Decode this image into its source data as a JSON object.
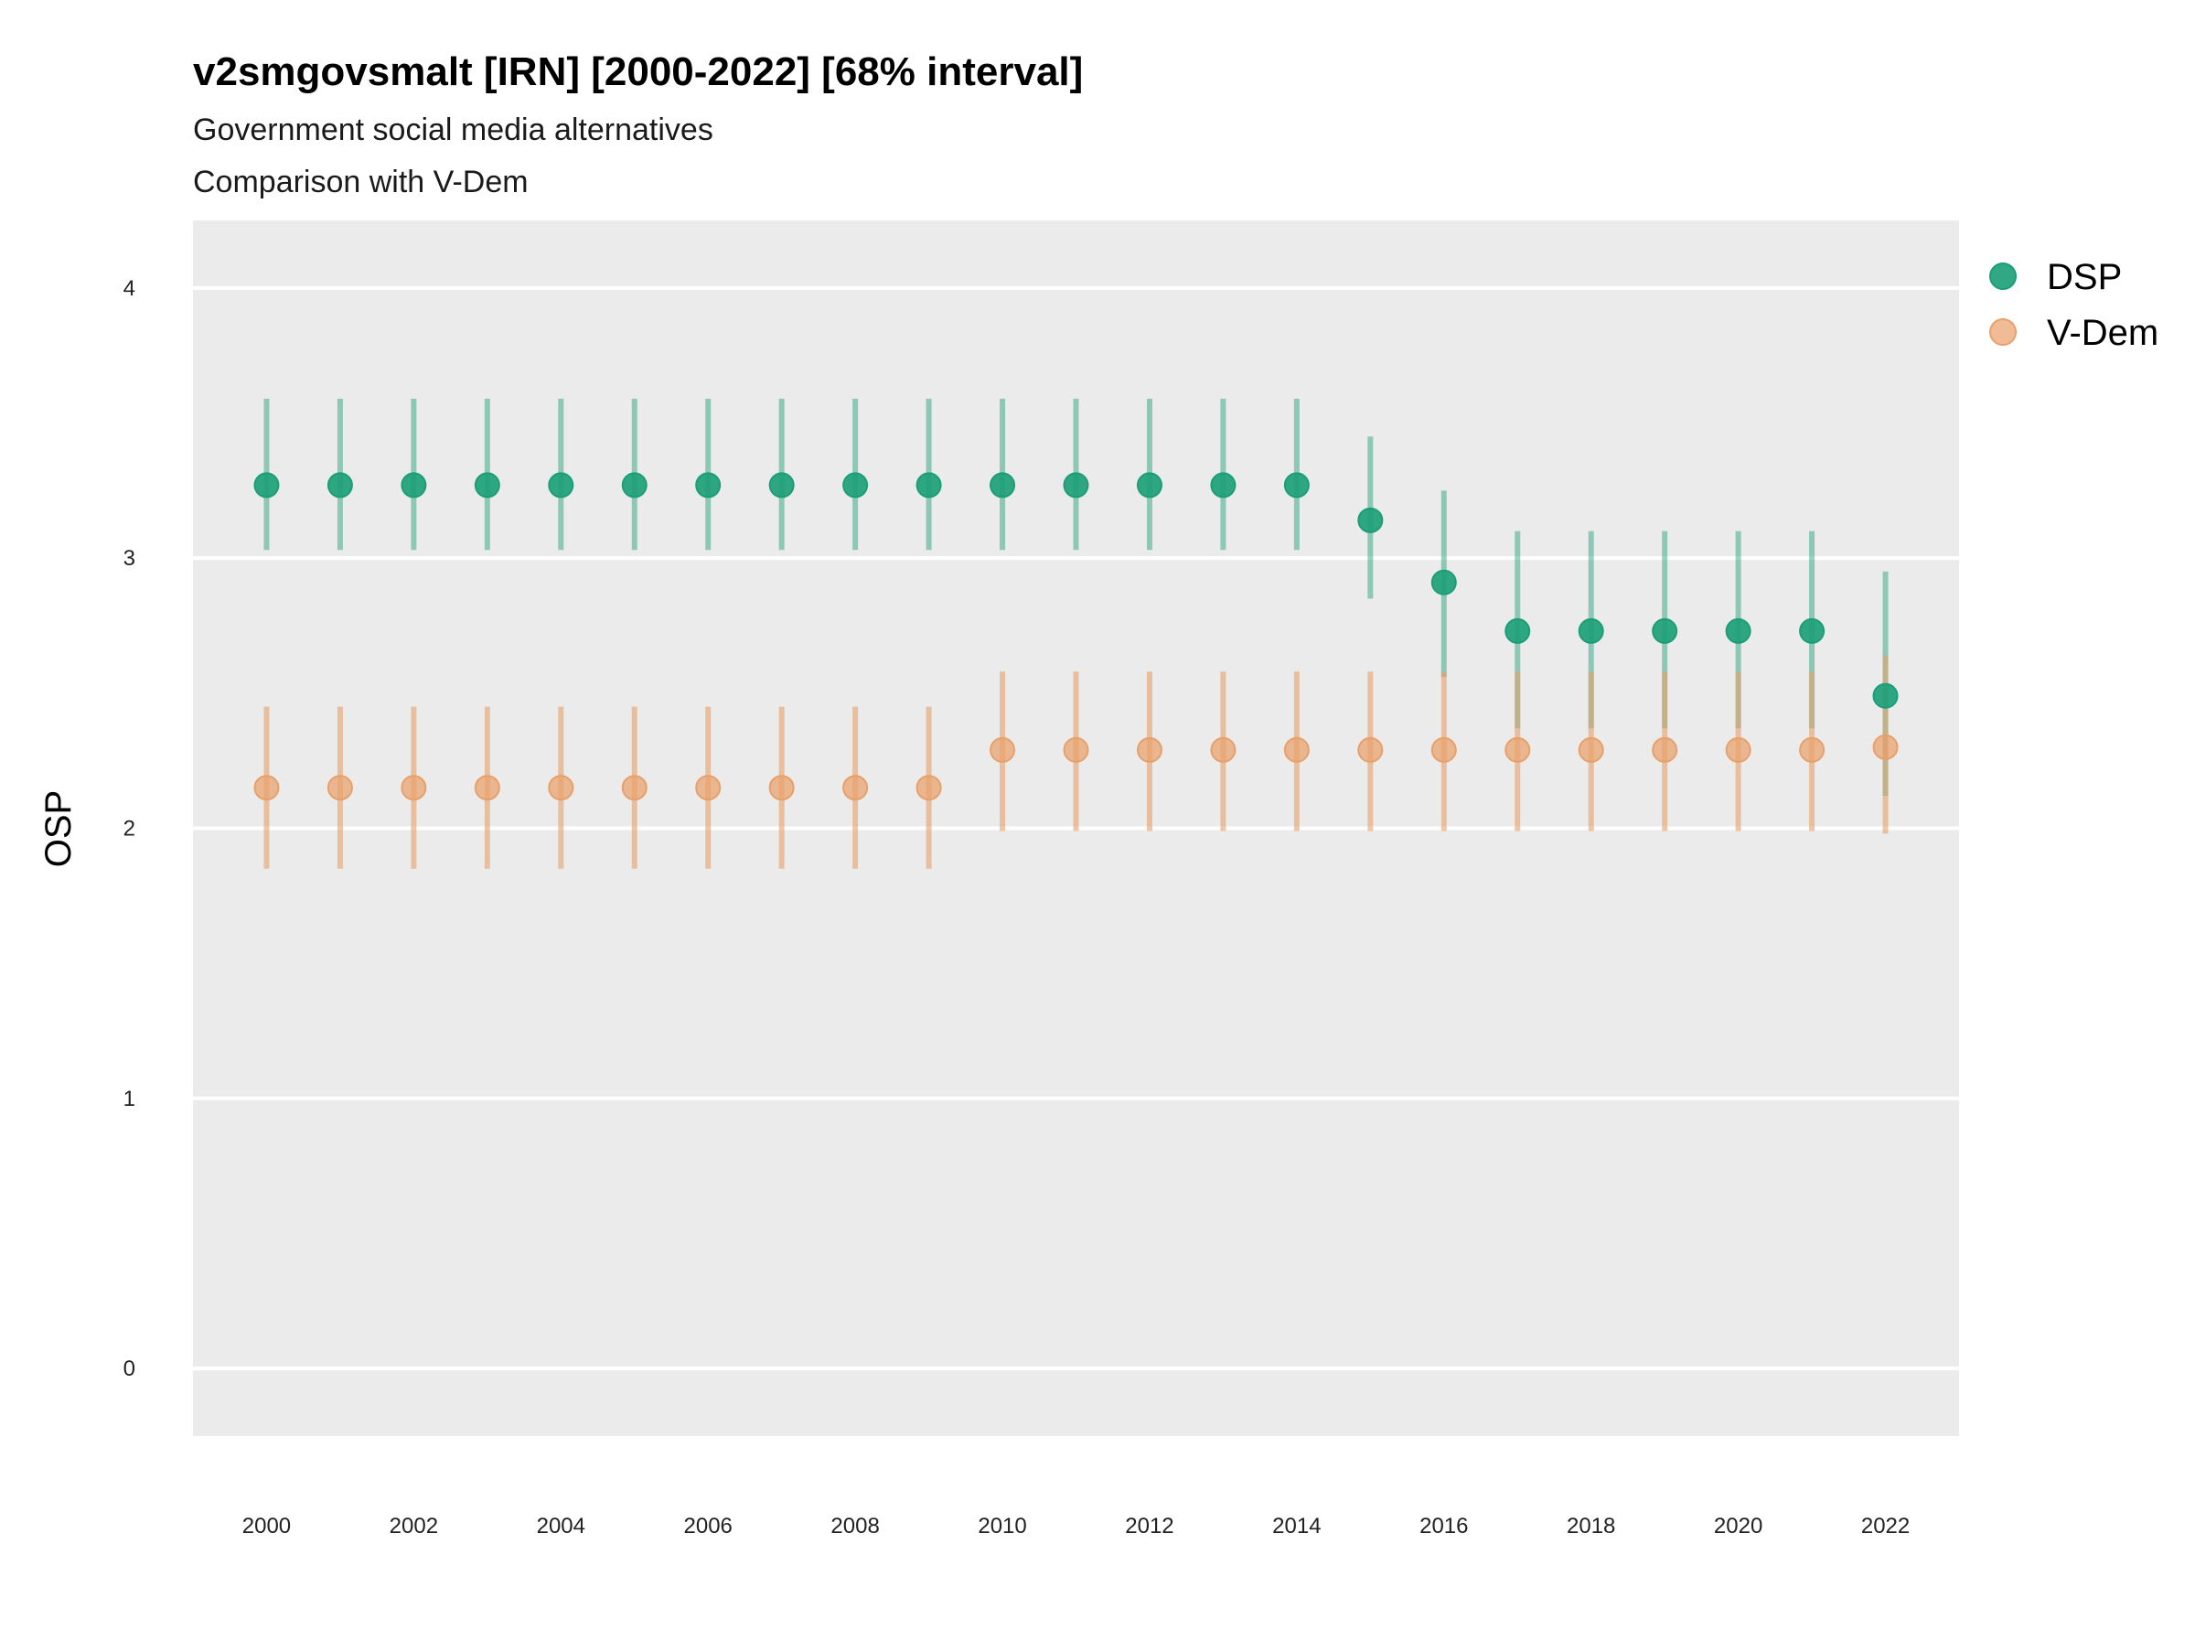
{
  "chart_data": {
    "type": "scatter",
    "title": "v2smgovsmalt [IRN] [2000-2022] [68% interval]",
    "subtitle": "Government social media alternatives",
    "subtitle2": "Comparison with V-Dem",
    "xlabel": "",
    "ylabel": "OSP",
    "xlim": [
      1999,
      2023
    ],
    "ylim": [
      -0.25,
      4.25
    ],
    "x_ticks": [
      "2000",
      "2002",
      "2004",
      "2006",
      "2008",
      "2010",
      "2012",
      "2014",
      "2016",
      "2018",
      "2020",
      "2022"
    ],
    "y_ticks": [
      "0",
      "1",
      "2",
      "3",
      "4"
    ],
    "grid": true,
    "legend_position": "right",
    "x": [
      2000,
      2001,
      2002,
      2003,
      2004,
      2005,
      2006,
      2007,
      2008,
      2009,
      2010,
      2011,
      2012,
      2013,
      2014,
      2015,
      2016,
      2017,
      2018,
      2019,
      2020,
      2021,
      2022
    ],
    "series": [
      {
        "name": "DSP",
        "color": "#1b9e77",
        "values": [
          3.27,
          3.27,
          3.27,
          3.27,
          3.27,
          3.27,
          3.27,
          3.27,
          3.27,
          3.27,
          3.27,
          3.27,
          3.27,
          3.27,
          3.27,
          3.14,
          2.91,
          2.73,
          2.73,
          2.73,
          2.73,
          2.73,
          2.49
        ],
        "lower": [
          3.03,
          3.03,
          3.03,
          3.03,
          3.03,
          3.03,
          3.03,
          3.03,
          3.03,
          3.03,
          3.03,
          3.03,
          3.03,
          3.03,
          3.03,
          2.85,
          2.56,
          2.37,
          2.37,
          2.37,
          2.37,
          2.37,
          2.12
        ],
        "upper": [
          3.59,
          3.59,
          3.59,
          3.59,
          3.59,
          3.59,
          3.59,
          3.59,
          3.59,
          3.59,
          3.59,
          3.59,
          3.59,
          3.59,
          3.59,
          3.45,
          3.25,
          3.1,
          3.1,
          3.1,
          3.1,
          3.1,
          2.95
        ]
      },
      {
        "name": "V-Dem",
        "color": "#e8a06a",
        "values": [
          2.15,
          2.15,
          2.15,
          2.15,
          2.15,
          2.15,
          2.15,
          2.15,
          2.15,
          2.15,
          2.29,
          2.29,
          2.29,
          2.29,
          2.29,
          2.29,
          2.29,
          2.29,
          2.29,
          2.29,
          2.29,
          2.29,
          2.3
        ],
        "lower": [
          1.85,
          1.85,
          1.85,
          1.85,
          1.85,
          1.85,
          1.85,
          1.85,
          1.85,
          1.85,
          1.99,
          1.99,
          1.99,
          1.99,
          1.99,
          1.99,
          1.99,
          1.99,
          1.99,
          1.99,
          1.99,
          1.99,
          1.98
        ],
        "upper": [
          2.45,
          2.45,
          2.45,
          2.45,
          2.45,
          2.45,
          2.45,
          2.45,
          2.45,
          2.45,
          2.58,
          2.58,
          2.58,
          2.58,
          2.58,
          2.58,
          2.58,
          2.58,
          2.58,
          2.58,
          2.58,
          2.58,
          2.64
        ]
      }
    ]
  }
}
